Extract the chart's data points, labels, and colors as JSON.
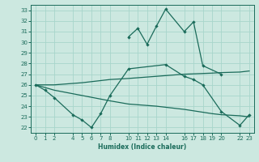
{
  "bg_color": "#cce8e0",
  "grid_color": "#a8d5cb",
  "line_color": "#1a6b5a",
  "xlabel": "Humidex (Indice chaleur)",
  "ylim": [
    21.5,
    33.5
  ],
  "xlim": [
    -0.5,
    23.5
  ],
  "yticks": [
    22,
    23,
    24,
    25,
    26,
    27,
    28,
    29,
    30,
    31,
    32,
    33
  ],
  "xticks": [
    0,
    1,
    2,
    4,
    5,
    6,
    7,
    8,
    10,
    11,
    12,
    13,
    14,
    16,
    17,
    18,
    19,
    20,
    22,
    23
  ],
  "line_upper_x": [
    10,
    11,
    12,
    13,
    14,
    16,
    17,
    18,
    20
  ],
  "line_upper_y": [
    30.5,
    31.3,
    29.8,
    31.5,
    33.1,
    31.0,
    31.9,
    27.8,
    27.0
  ],
  "line_mid_upper_x": [
    0,
    2,
    5,
    8,
    10,
    13,
    16,
    19,
    20,
    22,
    23
  ],
  "line_mid_upper_y": [
    26.0,
    26.0,
    26.2,
    26.5,
    26.6,
    26.8,
    27.0,
    27.1,
    27.15,
    27.2,
    27.3
  ],
  "line_mid_lower_x": [
    0,
    2,
    5,
    8,
    10,
    13,
    16,
    19,
    20,
    22,
    23
  ],
  "line_mid_lower_y": [
    26.0,
    25.5,
    25.0,
    24.5,
    24.2,
    24.0,
    23.7,
    23.3,
    23.2,
    23.1,
    23.0
  ],
  "line_lower_x": [
    0,
    1,
    2,
    4,
    5,
    6,
    7,
    8,
    10,
    14,
    16,
    17,
    18,
    20,
    22,
    23
  ],
  "line_lower_y": [
    26.0,
    25.5,
    24.8,
    23.2,
    22.7,
    22.0,
    23.3,
    25.0,
    27.5,
    27.9,
    26.8,
    26.5,
    26.0,
    23.5,
    22.2,
    23.2
  ]
}
